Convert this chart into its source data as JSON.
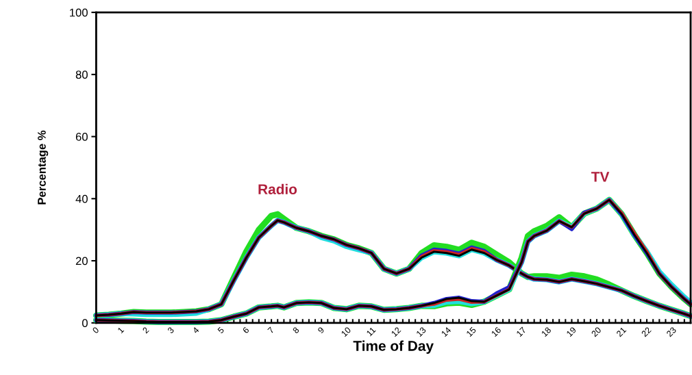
{
  "chart_data": {
    "type": "line",
    "xlabel": "Time of Day",
    "ylabel": "Percentage %",
    "x": [
      0,
      0.5,
      1,
      1.5,
      2,
      2.5,
      3,
      3.5,
      4,
      4.5,
      5,
      5.5,
      6,
      6.5,
      7,
      7.25,
      7.5,
      8,
      8.5,
      9,
      9.5,
      10,
      10.5,
      11,
      11.5,
      12,
      12.5,
      13,
      13.5,
      14,
      14.5,
      15,
      15.5,
      16,
      16.5,
      17,
      17.25,
      17.5,
      18,
      18.5,
      19,
      19.5,
      20,
      20.5,
      21,
      21.5,
      22,
      22.5,
      23,
      23.5,
      23.75
    ],
    "series": [
      {
        "color": "#22dd22",
        "values": [
          2.4,
          2.6,
          3,
          3.5,
          3.3,
          3.3,
          3.3,
          3.5,
          3.7,
          4.4,
          6,
          14.5,
          23,
          30,
          34.5,
          35,
          33.5,
          30.6,
          29.5,
          28,
          26.9,
          25.1,
          24,
          22.5,
          17.4,
          15.9,
          17.4,
          22.5,
          25,
          24.5,
          23.5,
          25.8,
          24.5,
          22,
          19.5,
          15.9,
          14.8,
          15,
          15,
          14.5,
          15.5,
          15,
          14,
          12.3,
          10.4,
          8.6,
          7,
          5.5,
          4.2,
          2.9,
          2.2
        ]
      },
      {
        "color": "#22dddd",
        "values": [
          2.4,
          2.6,
          3,
          2.9,
          2.7,
          2.7,
          2.7,
          2.9,
          3.1,
          4.4,
          6,
          13.7,
          21,
          27.5,
          31.3,
          33,
          32.4,
          30.6,
          29.5,
          27.5,
          26.4,
          24.6,
          23.5,
          22.5,
          17.4,
          15.9,
          17.4,
          21,
          22.9,
          22.5,
          21.6,
          23.6,
          22.5,
          20.3,
          18.5,
          15.9,
          14.8,
          14.1,
          13.9,
          13.2,
          14.1,
          13.4,
          12.6,
          11.5,
          10.4,
          8.6,
          7,
          5.5,
          4.2,
          2.9,
          2.2
        ]
      },
      {
        "color": "#2222cc",
        "values": [
          2.4,
          2.6,
          3,
          3.5,
          3.3,
          3.3,
          3.3,
          3.5,
          3.7,
          4.4,
          6,
          13.7,
          21,
          27.5,
          31.3,
          33,
          32.4,
          30.6,
          29.5,
          28,
          26.9,
          25.1,
          24,
          22.5,
          17.4,
          15.9,
          17.4,
          21.7,
          23.6,
          23.2,
          22.3,
          24.3,
          23.2,
          20.3,
          18.5,
          15.9,
          14.8,
          14.1,
          13.9,
          13.2,
          14.1,
          13.4,
          12.6,
          11.5,
          10.4,
          8.6,
          7,
          5.5,
          4.2,
          2.9,
          2.2
        ]
      },
      {
        "color": "#cc2222",
        "values": [
          2.4,
          2.6,
          3,
          3.5,
          3.3,
          3.3,
          3.3,
          3.5,
          3.7,
          4.4,
          6,
          13.7,
          21,
          27.5,
          31.3,
          33,
          32.4,
          30.6,
          29.5,
          28,
          26.9,
          25.1,
          24,
          22.5,
          17.4,
          15.9,
          17.4,
          21.4,
          23.3,
          22.9,
          22,
          24,
          22.9,
          20.3,
          18.5,
          15.9,
          14.8,
          14.1,
          13.9,
          13.2,
          14.1,
          13.4,
          12.6,
          11.5,
          10.4,
          8.6,
          7,
          5.5,
          4.2,
          2.9,
          2.2
        ]
      },
      {
        "color": "#000000",
        "values": [
          2.4,
          2.6,
          3,
          3.5,
          3.3,
          3.3,
          3.3,
          3.5,
          3.7,
          4.4,
          6,
          13.7,
          21,
          27.5,
          31.3,
          33,
          32.4,
          30.6,
          29.5,
          28,
          26.9,
          25.1,
          24,
          22.5,
          17.4,
          15.9,
          17.4,
          21,
          22.9,
          22.5,
          21.6,
          23.6,
          22.5,
          20.3,
          18.5,
          15.9,
          14.8,
          14.1,
          13.9,
          13.2,
          14.1,
          13.4,
          12.6,
          11.5,
          10.4,
          8.6,
          7,
          5.5,
          4.2,
          2.9,
          2.2
        ]
      },
      {
        "color": "#22dd22",
        "values": [
          0.9,
          0.8,
          0.7,
          0.6,
          0.4,
          0.3,
          0.3,
          0.3,
          0.3,
          0.4,
          0.9,
          2,
          3,
          5,
          5.3,
          5.5,
          5,
          6.4,
          6.6,
          6.4,
          4.8,
          4.4,
          5.5,
          5.3,
          4.2,
          4.4,
          4.8,
          5.5,
          5.4,
          6.3,
          6.5,
          5.8,
          6.8,
          8.8,
          10.8,
          21,
          28,
          29.5,
          31.2,
          34,
          30.8,
          35.2,
          36.8,
          39.6,
          35,
          28.4,
          22.5,
          15.9,
          11.5,
          7.7,
          6
        ]
      },
      {
        "color": "#22dddd",
        "values": [
          0.9,
          0.8,
          0.7,
          0.6,
          0.4,
          0.3,
          0.3,
          0.3,
          0.3,
          0.4,
          0.9,
          2,
          3,
          5,
          5.3,
          5.5,
          5,
          6.4,
          6.6,
          6.4,
          4.8,
          4.4,
          5.5,
          5.3,
          4.2,
          4.4,
          4.8,
          5.5,
          5.6,
          6.7,
          6.9,
          6.2,
          6.8,
          8.8,
          10.8,
          19.6,
          26.2,
          28,
          29.7,
          32.8,
          30.8,
          35.2,
          36.8,
          39.6,
          35,
          28.4,
          23,
          16.5,
          12.2,
          8.3,
          6.6
        ]
      },
      {
        "color": "#2222cc",
        "values": [
          0.9,
          0.8,
          0.7,
          0.6,
          0.4,
          0.3,
          0.3,
          0.3,
          0.3,
          0.4,
          0.9,
          2,
          3,
          5,
          5.3,
          5.5,
          5,
          6.4,
          6.6,
          6.4,
          4.8,
          4.4,
          5.5,
          5.3,
          4.2,
          4.4,
          4.8,
          5.5,
          6.4,
          7.7,
          8.1,
          7,
          6.8,
          9.5,
          11.5,
          19.6,
          26.2,
          28,
          29.7,
          32.8,
          30.2,
          35.5,
          36.8,
          39.6,
          35,
          28.4,
          22.5,
          15.9,
          11.5,
          7.7,
          6
        ]
      },
      {
        "color": "#cc2222",
        "values": [
          0.9,
          0.8,
          0.7,
          0.6,
          0.4,
          0.3,
          0.3,
          0.3,
          0.3,
          0.4,
          0.9,
          2,
          3,
          5,
          5.3,
          5.5,
          5,
          6.4,
          6.6,
          6.4,
          4.8,
          4.4,
          5.5,
          5.3,
          4.2,
          4.4,
          4.8,
          5.5,
          6,
          7.3,
          7.6,
          6.6,
          6.8,
          8.8,
          10.8,
          19.6,
          26.2,
          28,
          29.7,
          32.8,
          30.8,
          35.2,
          36.8,
          39.6,
          35.4,
          29,
          23,
          15.9,
          11.5,
          7.7,
          6
        ]
      },
      {
        "color": "#000000",
        "values": [
          0.9,
          0.8,
          0.7,
          0.6,
          0.4,
          0.3,
          0.3,
          0.3,
          0.3,
          0.4,
          0.9,
          2,
          3,
          5,
          5.3,
          5.5,
          5,
          6.4,
          6.6,
          6.4,
          4.8,
          4.4,
          5.5,
          5.3,
          4.2,
          4.4,
          4.8,
          5.5,
          6.4,
          7.7,
          8.1,
          7,
          6.8,
          8.8,
          10.8,
          19.6,
          26.2,
          28,
          29.7,
          32.8,
          30.8,
          35.2,
          36.8,
          39.6,
          35,
          28.4,
          22.5,
          15.9,
          11.5,
          7.7,
          6
        ]
      }
    ],
    "xlim": [
      0,
      23.75
    ],
    "xticks": [
      0,
      1,
      2,
      3,
      4,
      5,
      6,
      7,
      8,
      9,
      10,
      11,
      12,
      13,
      14,
      15,
      16,
      17,
      18,
      19,
      20,
      21,
      22,
      23
    ],
    "ylim": [
      0,
      100
    ],
    "yticks": [
      0,
      20,
      40,
      60,
      80,
      100
    ],
    "annotations": [
      "Radio",
      "TV"
    ],
    "grid": false,
    "marker": "none",
    "line_style": "solid"
  }
}
